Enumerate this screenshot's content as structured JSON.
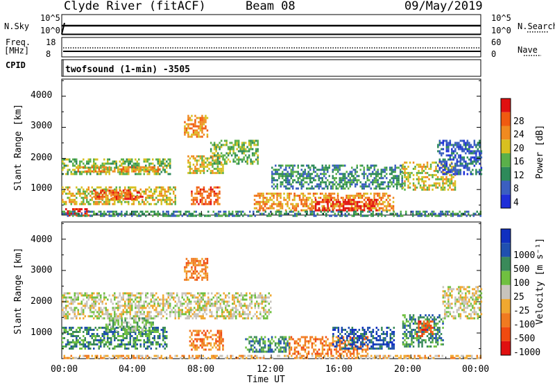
{
  "header": {
    "station": "Clyde River (fitACF)",
    "beam": "Beam 08",
    "date": "09/May/2019"
  },
  "nsky_panel": {
    "left_label": "N.Sky",
    "right_label": "N.Search",
    "left_ticks": [
      "10^5",
      "10^0"
    ],
    "right_ticks": [
      "10^5",
      "10^0"
    ]
  },
  "freq_panel": {
    "left_label_1": "Freq.",
    "left_label_2": "[MHz]",
    "right_label": "Nave",
    "left_ticks": [
      "18",
      "8"
    ],
    "right_ticks": [
      "60",
      "0"
    ]
  },
  "cpid_panel": {
    "label": "CPID",
    "mode_text": "twofsound (1-min) -3505"
  },
  "colors": {
    "power": [
      "#1f2fd8",
      "#3b5fc0",
      "#2e8a5a",
      "#5ab04a",
      "#d8c020",
      "#f08a20",
      "#f05a10",
      "#e01010"
    ],
    "velocity": [
      "#e01010",
      "#f04a10",
      "#f07a20",
      "#f0a830",
      "#c8c4bc",
      "#70c040",
      "#3a8a5a",
      "#2050b0",
      "#1030c0"
    ]
  },
  "chart_data": [
    {
      "type": "heatmap",
      "name": "power",
      "title": "",
      "xlabel": "Time UT",
      "ylabel": "Slant Range [km]",
      "colorbar_label": "Power [dB]",
      "colorbar_ticks": [
        "28",
        "24",
        "20",
        "16",
        "12",
        "8",
        "4"
      ],
      "x_ticks": [
        "00:00",
        "04:00",
        "08:00",
        "12:00",
        "16:00",
        "20:00",
        "00:00"
      ],
      "y_ticks": [
        "1000",
        "2000",
        "3000",
        "4000"
      ],
      "xlim": [
        0,
        24
      ],
      "ylim": [
        180,
        4550
      ],
      "bands": [
        {
          "t0": 0.0,
          "t1": 6.2,
          "r0": 1500,
          "r1": 2000,
          "lvl": 3
        },
        {
          "t0": 0.8,
          "t1": 5.8,
          "r0": 1550,
          "r1": 1750,
          "lvl": 5
        },
        {
          "t0": 0.0,
          "t1": 6.5,
          "r0": 500,
          "r1": 1100,
          "lvl": 4
        },
        {
          "t0": 1.8,
          "t1": 4.6,
          "r0": 700,
          "r1": 1000,
          "lvl": 6
        },
        {
          "t0": 0.2,
          "t1": 1.5,
          "r0": 180,
          "r1": 400,
          "lvl": 7
        },
        {
          "t0": 7.0,
          "t1": 8.3,
          "r0": 2700,
          "r1": 3400,
          "lvl": 5
        },
        {
          "t0": 7.2,
          "t1": 9.2,
          "r0": 1500,
          "r1": 2100,
          "lvl": 4
        },
        {
          "t0": 7.4,
          "t1": 9.0,
          "r0": 500,
          "r1": 1100,
          "lvl": 6
        },
        {
          "t0": 8.5,
          "t1": 11.2,
          "r0": 1800,
          "r1": 2600,
          "lvl": 3
        },
        {
          "t0": 11.0,
          "t1": 19.0,
          "r0": 350,
          "r1": 900,
          "lvl": 5
        },
        {
          "t0": 14.5,
          "t1": 18.0,
          "r0": 350,
          "r1": 700,
          "lvl": 7
        },
        {
          "t0": 12.0,
          "t1": 19.5,
          "r0": 1000,
          "r1": 1800,
          "lvl": 2
        },
        {
          "t0": 19.5,
          "t1": 22.5,
          "r0": 1000,
          "r1": 1900,
          "lvl": 4
        },
        {
          "t0": 21.5,
          "t1": 24.0,
          "r0": 1500,
          "r1": 2600,
          "lvl": 1
        },
        {
          "t0": 0.0,
          "t1": 24.0,
          "r0": 180,
          "r1": 320,
          "lvl": 2
        }
      ]
    },
    {
      "type": "heatmap",
      "name": "velocity",
      "title": "",
      "xlabel": "Time UT",
      "ylabel": "Slant Range [km]",
      "colorbar_label": "Velocity [m s⁻¹]",
      "colorbar_ticks": [
        "1000",
        "500",
        "100",
        "25",
        "-25",
        "-100",
        "-500",
        "-1000"
      ],
      "x_ticks": [
        "00:00",
        "04:00",
        "08:00",
        "12:00",
        "16:00",
        "20:00",
        "00:00"
      ],
      "y_ticks": [
        "1000",
        "2000",
        "3000",
        "4000"
      ],
      "xlim": [
        0,
        24
      ],
      "ylim": [
        180,
        4550
      ],
      "bands": [
        {
          "t0": 0.0,
          "t1": 12.0,
          "r0": 1500,
          "r1": 2300,
          "lvl": 4
        },
        {
          "t0": 0.0,
          "t1": 6.0,
          "r0": 500,
          "r1": 1200,
          "lvl": 6
        },
        {
          "t0": 2.5,
          "t1": 5.2,
          "r0": 1100,
          "r1": 1500,
          "lvl": 5
        },
        {
          "t0": 7.0,
          "t1": 8.3,
          "r0": 2700,
          "r1": 3400,
          "lvl": 2
        },
        {
          "t0": 7.3,
          "t1": 9.2,
          "r0": 500,
          "r1": 1100,
          "lvl": 2
        },
        {
          "t0": 10.5,
          "t1": 13.0,
          "r0": 400,
          "r1": 900,
          "lvl": 6
        },
        {
          "t0": 13.0,
          "t1": 17.5,
          "r0": 350,
          "r1": 900,
          "lvl": 2
        },
        {
          "t0": 15.5,
          "t1": 19.0,
          "r0": 500,
          "r1": 1200,
          "lvl": 7
        },
        {
          "t0": 19.5,
          "t1": 21.8,
          "r0": 600,
          "r1": 1600,
          "lvl": 6
        },
        {
          "t0": 20.3,
          "t1": 21.2,
          "r0": 900,
          "r1": 1400,
          "lvl": 1
        },
        {
          "t0": 21.8,
          "t1": 24.0,
          "r0": 1500,
          "r1": 2500,
          "lvl": 4
        },
        {
          "t0": 0.0,
          "t1": 24.0,
          "r0": 180,
          "r1": 300,
          "lvl": 3
        }
      ]
    }
  ]
}
